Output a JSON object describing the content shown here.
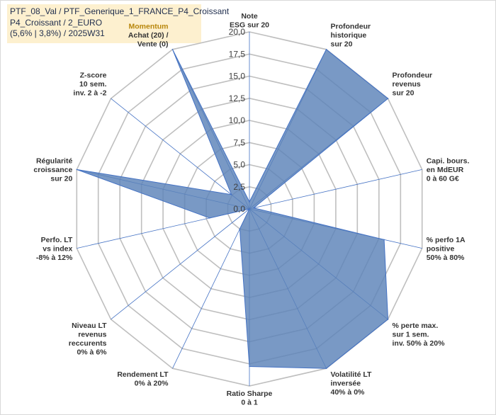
{
  "header": {
    "line1": "PTF_08_Val / PTF_Generique_1_FRANCE_P4_Croissant",
    "line2": "P4_Croissant / 2_EURO",
    "line3": "(5,6% | 3,8%) / 2025W31"
  },
  "colors": {
    "fill": "#5b82b8",
    "stroke": "#4472c4",
    "grid": "#bfbfbf",
    "spoke": "#4472c4",
    "header_bg": "#fdf0cf",
    "highlight_label": "#b8860b"
  },
  "chart_data": {
    "type": "radar",
    "rmin": 0,
    "rmax": 20,
    "tick_labels": [
      "0,0",
      "2,5",
      "5,0",
      "7,5",
      "10,0",
      "12,5",
      "15,0",
      "17,5",
      "20,0"
    ],
    "grid": true,
    "axes": [
      {
        "label": [
          "Note",
          "ESG sur 20"
        ],
        "value": 0.8
      },
      {
        "label": [
          "Profondeur",
          "historique",
          "sur 20"
        ],
        "value": 20
      },
      {
        "label": [
          "Profondeur",
          "revenus",
          "sur 20"
        ],
        "value": 20
      },
      {
        "label": [
          "Capi. bours.",
          "en MdEUR",
          "0 à 60 G€"
        ],
        "value": 0.5
      },
      {
        "label": [
          "% perfo 1A",
          "positive",
          "50% à 80%"
        ],
        "value": 15.6
      },
      {
        "label": [
          "% perte max.",
          "sur 1 sem.",
          "inv. 50% à 20%"
        ],
        "value": 20
      },
      {
        "label": [
          "Volatilité LT",
          "inversée",
          "40% à 0%"
        ],
        "value": 20
      },
      {
        "label": [
          "Ratio Sharpe",
          "0 à 1"
        ],
        "value": 17.8
      },
      {
        "label": [
          "Rendement LT",
          "0% à 20%"
        ],
        "value": 2.5
      },
      {
        "label": [
          "Niveau LT",
          "revenus",
          "reccurents",
          "0% à 6%"
        ],
        "value": 0
      },
      {
        "label": [
          "Perfo. LT",
          "vs index",
          "-8% à 12%"
        ],
        "value": 4.6
      },
      {
        "label": [
          "Régularité",
          "croissance",
          "sur 20"
        ],
        "value": 20
      },
      {
        "label": [
          "Z-score",
          "10 sem.",
          "inv. 2 à -2"
        ],
        "value": 2.6
      },
      {
        "label": [
          "Momentum",
          "Achat (20) /",
          "Vente (0)"
        ],
        "value": 20,
        "highlight_first_line": true
      }
    ]
  }
}
